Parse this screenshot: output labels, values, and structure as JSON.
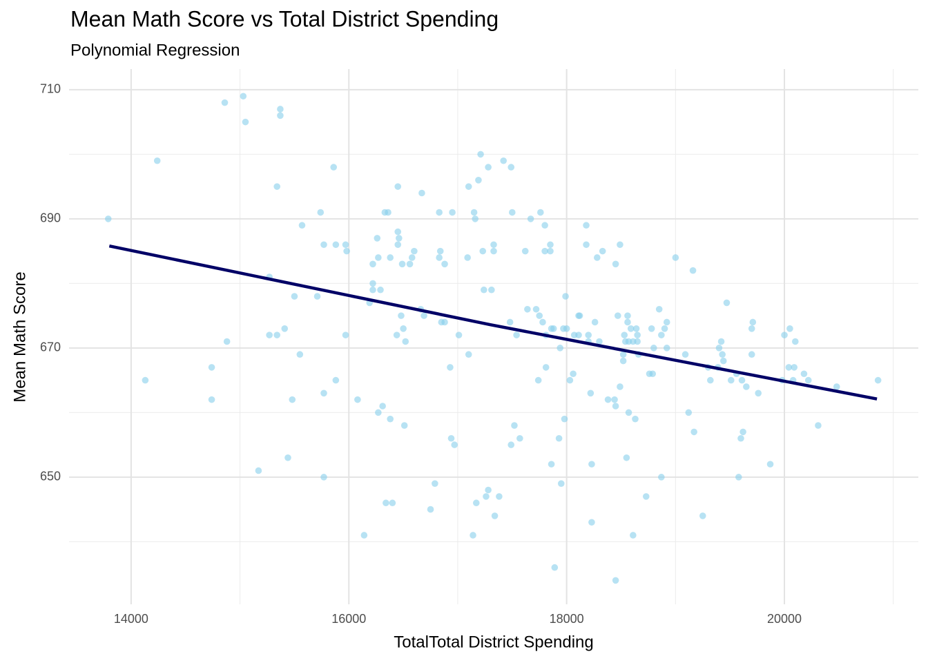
{
  "chart_data": {
    "type": "scatter",
    "title": "Mean Math Score vs Total District Spending",
    "subtitle": "Polynomial Regression",
    "x_label": "TotalTotal District Spending",
    "y_label": "Mean Math Score",
    "xlim": [
      13430,
      21230
    ],
    "ylim": [
      630.3,
      713.2
    ],
    "xticks": [
      14000,
      16000,
      18000,
      20000
    ],
    "yticks": [
      650,
      670,
      690,
      710
    ],
    "x_minor_gridlines": [
      15000,
      17000,
      19000,
      21000
    ],
    "y_minor_gridlines": [
      640,
      660,
      680,
      700
    ],
    "grid": true,
    "points": {
      "color": "#87ceeb",
      "x": [
        13790,
        14130,
        14240,
        14740,
        14740,
        14880,
        14860,
        15030,
        15050,
        15170,
        15270,
        15270,
        15340,
        15340,
        15370,
        15370,
        15410,
        15440,
        15480,
        15500,
        15550,
        15570,
        15710,
        15740,
        15770,
        15770,
        15770,
        15880,
        15860,
        15880,
        15970,
        15980,
        15970,
        16080,
        16140,
        16190,
        16220,
        16220,
        16220,
        16260,
        16270,
        16270,
        16290,
        16310,
        16330,
        16360,
        16340,
        16380,
        16380,
        16400,
        16440,
        16450,
        16450,
        16450,
        16460,
        16480,
        16490,
        16500,
        16510,
        16520,
        16560,
        16580,
        16600,
        16660,
        16670,
        16690,
        16750,
        16790,
        16830,
        16830,
        16840,
        16850,
        16880,
        16880,
        16930,
        16940,
        16950,
        16970,
        17010,
        17090,
        17100,
        17100,
        17140,
        17150,
        17160,
        17170,
        17190,
        17210,
        17230,
        17240,
        17260,
        17280,
        17280,
        17310,
        17330,
        17330,
        17340,
        17380,
        17420,
        17480,
        17490,
        17490,
        17500,
        17520,
        17540,
        17570,
        17620,
        17640,
        17670,
        17720,
        17740,
        17750,
        17760,
        17780,
        17800,
        17800,
        17810,
        17810,
        17850,
        17850,
        17860,
        17860,
        17880,
        17890,
        17930,
        17940,
        17950,
        17970,
        17980,
        17990,
        18000,
        18030,
        18060,
        18070,
        18110,
        18110,
        18120,
        18180,
        18180,
        18200,
        18200,
        18220,
        18230,
        18230,
        18260,
        18280,
        18300,
        18330,
        18380,
        18440,
        18450,
        18450,
        18450,
        18470,
        18490,
        18490,
        18520,
        18520,
        18530,
        18540,
        18560,
        18560,
        18550,
        18570,
        18570,
        18590,
        18610,
        18610,
        18630,
        18640,
        18650,
        18650,
        18660,
        18730,
        18760,
        18790,
        18780,
        18800,
        18850,
        18870,
        18870,
        18900,
        18920,
        18920,
        19000,
        19090,
        19120,
        19160,
        19170,
        19250,
        19300,
        19320,
        19390,
        19400,
        19420,
        19430,
        19440,
        19470,
        19510,
        19560,
        19580,
        19600,
        19610,
        19620,
        19650,
        19700,
        19700,
        19710,
        19760,
        19870,
        19980,
        20000,
        20040,
        20050,
        20080,
        20090,
        20100,
        20180,
        20220,
        20310,
        20480,
        20860
      ],
      "values": [
        690,
        665,
        699,
        667,
        662,
        671,
        708,
        709,
        705,
        651,
        681,
        672,
        672,
        695,
        707,
        706,
        673,
        653,
        662,
        678,
        669,
        689,
        678,
        691,
        686,
        663,
        650,
        686,
        698,
        665,
        686,
        685,
        672,
        662,
        641,
        677,
        680,
        679,
        683,
        687,
        660,
        684,
        679,
        661,
        691,
        691,
        646,
        659,
        684,
        646,
        672,
        688,
        686,
        695,
        687,
        675,
        683,
        673,
        658,
        671,
        683,
        684,
        685,
        676,
        694,
        675,
        645,
        649,
        691,
        684,
        685,
        674,
        674,
        683,
        667,
        656,
        691,
        655,
        672,
        684,
        669,
        695,
        641,
        691,
        690,
        646,
        696,
        700,
        685,
        679,
        647,
        698,
        648,
        679,
        686,
        685,
        644,
        647,
        699,
        674,
        698,
        655,
        691,
        658,
        672,
        656,
        685,
        676,
        690,
        676,
        665,
        675,
        691,
        674,
        689,
        685,
        672,
        667,
        686,
        685,
        673,
        652,
        673,
        636,
        656,
        670,
        649,
        673,
        659,
        678,
        673,
        665,
        666,
        672,
        672,
        675,
        675,
        689,
        686,
        672,
        671,
        663,
        643,
        652,
        674,
        684,
        671,
        685,
        662,
        662,
        661,
        683,
        634,
        675,
        686,
        664,
        668,
        669,
        672,
        671,
        675,
        674,
        653,
        671,
        660,
        673,
        671,
        641,
        659,
        673,
        672,
        671,
        669,
        647,
        666,
        666,
        673,
        670,
        676,
        672,
        650,
        673,
        674,
        670,
        684,
        669,
        660,
        682,
        657,
        644,
        667,
        665,
        667,
        670,
        671,
        669,
        668,
        677,
        665,
        666,
        650,
        656,
        665,
        657,
        664,
        669,
        673,
        674,
        663,
        652,
        665,
        672,
        667,
        673,
        665,
        667,
        671,
        666,
        665,
        658,
        664,
        665
      ]
    },
    "trend_line": {
      "color": "#000066",
      "x": [
        13800,
        17300,
        20850
      ],
      "values": [
        685.8,
        673.6,
        662.1
      ]
    }
  }
}
